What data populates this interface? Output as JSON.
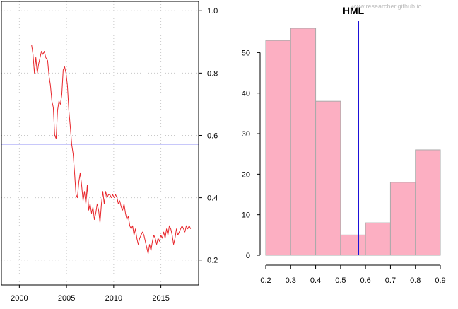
{
  "watermark": "www.researcher.github.io",
  "chart_data": [
    {
      "type": "line",
      "title": "",
      "xlabel": "",
      "ylabel": "",
      "xlim": [
        1998.1,
        2019.0
      ],
      "ylim": [
        0.12,
        1.03
      ],
      "x_ticks": [
        2000,
        2005,
        2010,
        2015
      ],
      "x_tick_labels": [
        "2000",
        "2005",
        "2010",
        "2015"
      ],
      "y_ticks": [
        0.2,
        0.4,
        0.6,
        0.8,
        1.0
      ],
      "y_tick_labels": [
        "0.2",
        "0.4",
        "0.6",
        "0.8",
        "1.0"
      ],
      "y_axis_side": "right",
      "grid": "dotted",
      "hline": {
        "value": 0.572,
        "color": "#6b6bf0"
      },
      "series": [
        {
          "color": "#e8262b",
          "points": [
            [
              2001.3,
              0.89
            ],
            [
              2001.45,
              0.86
            ],
            [
              2001.6,
              0.8
            ],
            [
              2001.75,
              0.85
            ],
            [
              2001.9,
              0.8
            ],
            [
              2002.05,
              0.83
            ],
            [
              2002.2,
              0.85
            ],
            [
              2002.35,
              0.87
            ],
            [
              2002.5,
              0.86
            ],
            [
              2002.65,
              0.87
            ],
            [
              2002.8,
              0.85
            ],
            [
              2003.0,
              0.84
            ],
            [
              2003.15,
              0.79
            ],
            [
              2003.3,
              0.76
            ],
            [
              2003.45,
              0.71
            ],
            [
              2003.6,
              0.69
            ],
            [
              2003.75,
              0.6
            ],
            [
              2003.9,
              0.59
            ],
            [
              2004.05,
              0.68
            ],
            [
              2004.2,
              0.71
            ],
            [
              2004.35,
              0.7
            ],
            [
              2004.5,
              0.73
            ],
            [
              2004.65,
              0.81
            ],
            [
              2004.8,
              0.82
            ],
            [
              2004.95,
              0.8
            ],
            [
              2005.1,
              0.76
            ],
            [
              2005.25,
              0.68
            ],
            [
              2005.4,
              0.63
            ],
            [
              2005.55,
              0.57
            ],
            [
              2005.7,
              0.54
            ],
            [
              2005.85,
              0.48
            ],
            [
              2006.0,
              0.41
            ],
            [
              2006.15,
              0.4
            ],
            [
              2006.3,
              0.45
            ],
            [
              2006.45,
              0.48
            ],
            [
              2006.6,
              0.44
            ],
            [
              2006.75,
              0.39
            ],
            [
              2006.9,
              0.42
            ],
            [
              2007.05,
              0.38
            ],
            [
              2007.2,
              0.44
            ],
            [
              2007.35,
              0.36
            ],
            [
              2007.5,
              0.38
            ],
            [
              2007.65,
              0.35
            ],
            [
              2007.8,
              0.37
            ],
            [
              2007.95,
              0.33
            ],
            [
              2008.1,
              0.35
            ],
            [
              2008.25,
              0.38
            ],
            [
              2008.4,
              0.36
            ],
            [
              2008.55,
              0.32
            ],
            [
              2008.7,
              0.38
            ],
            [
              2008.85,
              0.42
            ],
            [
              2009.0,
              0.38
            ],
            [
              2009.15,
              0.42
            ],
            [
              2009.3,
              0.4
            ],
            [
              2009.45,
              0.41
            ],
            [
              2009.6,
              0.41
            ],
            [
              2009.75,
              0.4
            ],
            [
              2009.9,
              0.41
            ],
            [
              2010.05,
              0.4
            ],
            [
              2010.2,
              0.41
            ],
            [
              2010.35,
              0.4
            ],
            [
              2010.5,
              0.38
            ],
            [
              2010.65,
              0.39
            ],
            [
              2010.8,
              0.37
            ],
            [
              2010.95,
              0.36
            ],
            [
              2011.1,
              0.38
            ],
            [
              2011.25,
              0.35
            ],
            [
              2011.4,
              0.33
            ],
            [
              2011.55,
              0.34
            ],
            [
              2011.7,
              0.31
            ],
            [
              2011.85,
              0.3
            ],
            [
              2012.0,
              0.31
            ],
            [
              2012.15,
              0.28
            ],
            [
              2012.3,
              0.3
            ],
            [
              2012.45,
              0.27
            ],
            [
              2012.6,
              0.25
            ],
            [
              2012.75,
              0.27
            ],
            [
              2012.9,
              0.28
            ],
            [
              2013.05,
              0.29
            ],
            [
              2013.2,
              0.28
            ],
            [
              2013.35,
              0.26
            ],
            [
              2013.5,
              0.24
            ],
            [
              2013.65,
              0.22
            ],
            [
              2013.8,
              0.25
            ],
            [
              2013.95,
              0.23
            ],
            [
              2014.1,
              0.26
            ],
            [
              2014.25,
              0.28
            ],
            [
              2014.4,
              0.27
            ],
            [
              2014.55,
              0.25
            ],
            [
              2014.7,
              0.27
            ],
            [
              2014.85,
              0.26
            ],
            [
              2015.0,
              0.28
            ],
            [
              2015.15,
              0.27
            ],
            [
              2015.3,
              0.29
            ],
            [
              2015.45,
              0.27
            ],
            [
              2015.6,
              0.3
            ],
            [
              2015.75,
              0.28
            ],
            [
              2015.9,
              0.31
            ],
            [
              2016.05,
              0.3
            ],
            [
              2016.2,
              0.28
            ],
            [
              2016.35,
              0.25
            ],
            [
              2016.5,
              0.27
            ],
            [
              2016.65,
              0.3
            ],
            [
              2016.8,
              0.28
            ],
            [
              2016.95,
              0.29
            ],
            [
              2017.1,
              0.3
            ],
            [
              2017.25,
              0.31
            ],
            [
              2017.4,
              0.3
            ],
            [
              2017.55,
              0.29
            ],
            [
              2017.7,
              0.31
            ],
            [
              2017.85,
              0.3
            ],
            [
              2018.0,
              0.31
            ],
            [
              2018.15,
              0.3
            ]
          ]
        }
      ]
    },
    {
      "type": "bar",
      "subtype": "histogram",
      "title": "HML",
      "xlabel": "",
      "ylabel": "",
      "bin_edges": [
        0.2,
        0.3,
        0.4,
        0.5,
        0.6,
        0.7,
        0.8,
        0.9
      ],
      "counts": [
        53,
        56,
        38,
        5,
        8,
        18,
        26
      ],
      "xlim": [
        0.2,
        0.9
      ],
      "ylim": [
        0,
        56
      ],
      "x_ticks": [
        0.2,
        0.3,
        0.4,
        0.5,
        0.6,
        0.7,
        0.8,
        0.9
      ],
      "x_tick_labels": [
        "0.2",
        "0.3",
        "0.4",
        "0.5",
        "0.6",
        "0.7",
        "0.8",
        "0.9"
      ],
      "y_ticks": [
        0,
        10,
        20,
        30,
        40,
        50
      ],
      "y_tick_labels": [
        "0",
        "10",
        "20",
        "30",
        "40",
        "50"
      ],
      "bar_color": "#fcafc2",
      "bar_border": "#aaaaaa",
      "vline": {
        "value": 0.572,
        "color": "#1c10d8"
      }
    }
  ]
}
